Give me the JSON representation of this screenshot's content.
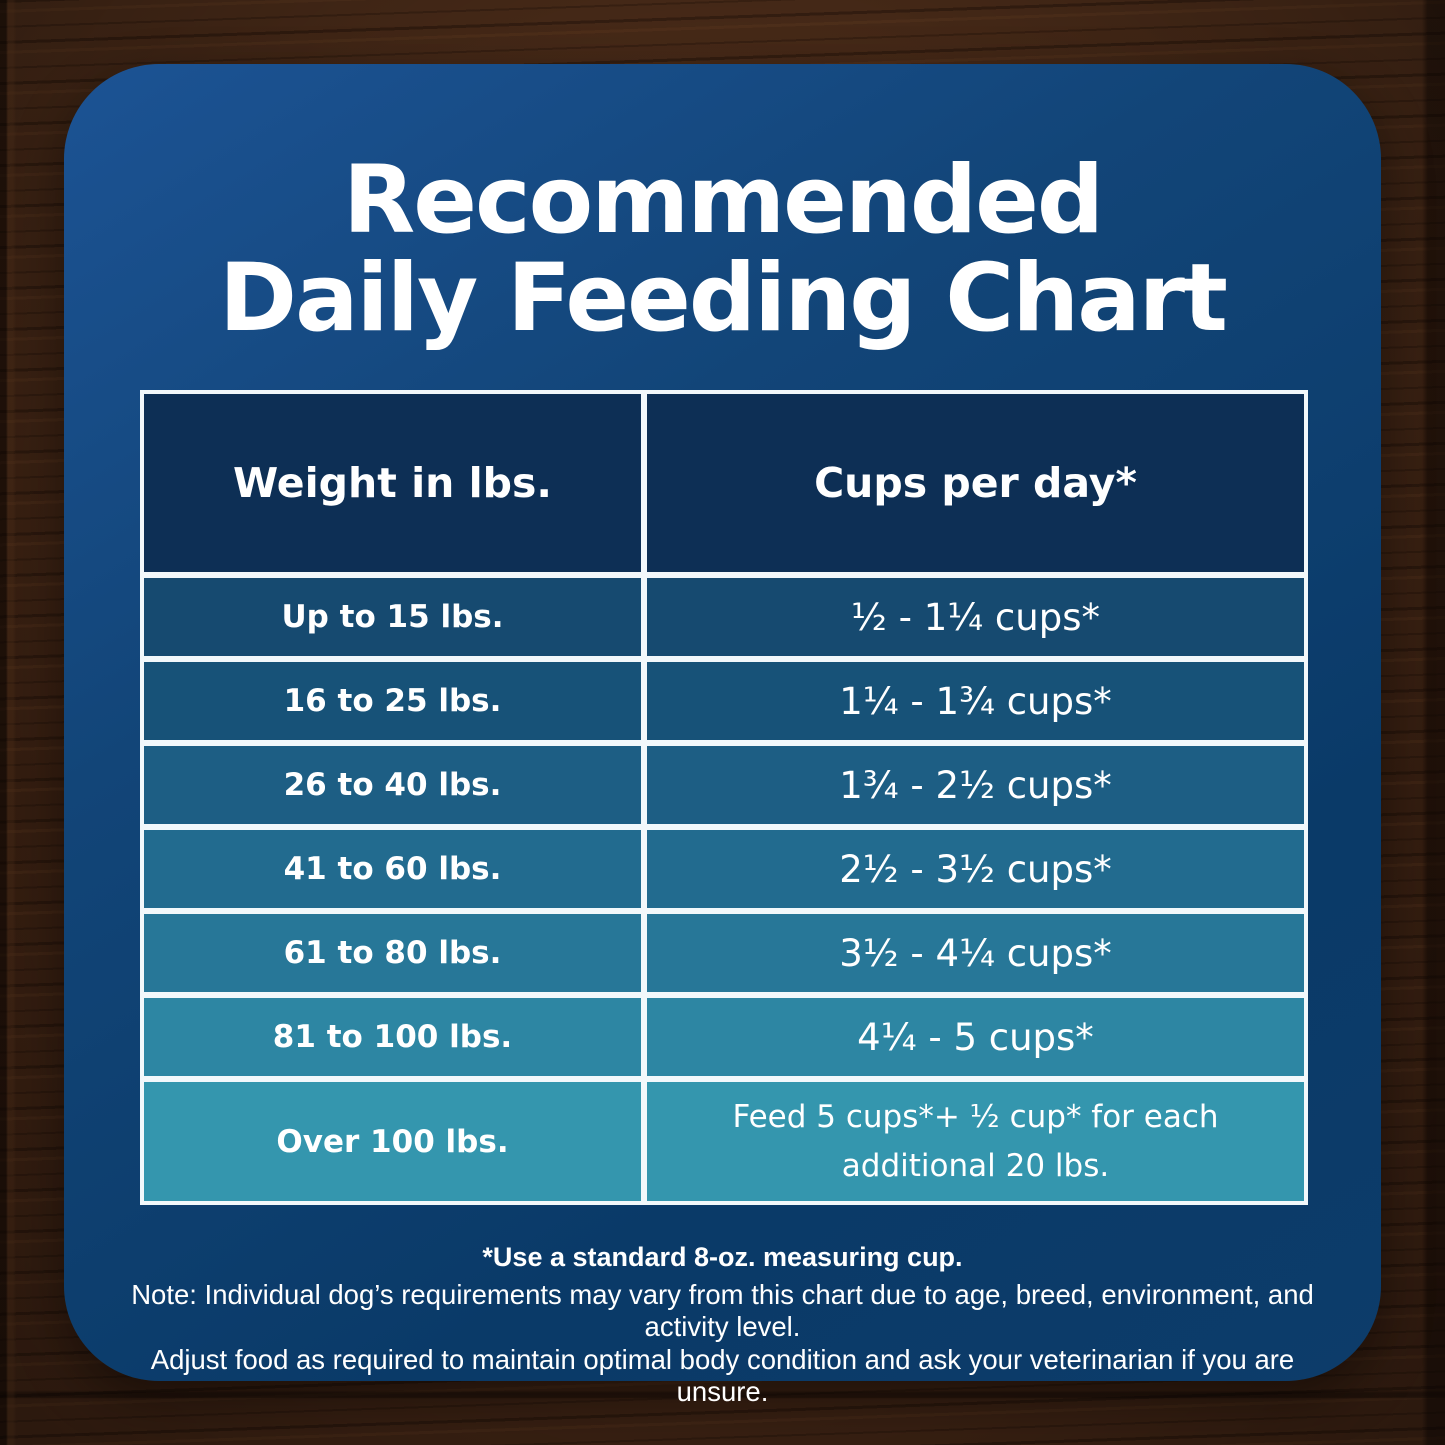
{
  "title": {
    "line1": "Recommended",
    "line2": "Daily Feeding Chart"
  },
  "table": {
    "headers": [
      "Weight in lbs.",
      "Cups per day*"
    ],
    "header_bg": "#0d2f55",
    "divider_color": "#f2f8fb",
    "row_colors": [
      "#164a70",
      "#175278",
      "#1d5e84",
      "#226b8f",
      "#277798",
      "#2d86a3",
      "#3496ae"
    ],
    "rows": [
      {
        "weight": "Up to 15 lbs.",
        "cups": "½ - 1¼ cups*"
      },
      {
        "weight": "16 to 25 lbs.",
        "cups": "1¼ - 1¾  cups*"
      },
      {
        "weight": "26 to 40 lbs.",
        "cups": "1¾ - 2½ cups*"
      },
      {
        "weight": "41 to 60 lbs.",
        "cups": "2½ - 3½ cups*"
      },
      {
        "weight": "61 to 80 lbs.",
        "cups": "3½ - 4¼ cups*"
      },
      {
        "weight": "81 to 100 lbs.",
        "cups": "4¼ - 5 cups*"
      },
      {
        "weight": "Over 100 lbs.",
        "cups": "Feed 5 cups*+ ½ cup* for each additional 20 lbs."
      }
    ]
  },
  "footnotes": {
    "line1": "*Use a standard 8-oz. measuring cup.",
    "line2": "Note: Individual dog’s requirements may vary from this chart due to age, breed, environment, and activity level.",
    "line3": "Adjust food as required to maintain optimal body condition and ask your veterinarian if you are unsure."
  },
  "colors": {
    "card_blue_top": "#1c5394",
    "card_blue_bottom": "#0a3a68",
    "wood_brown": "#4b2a17",
    "text": "#ffffff"
  },
  "chart_data": {
    "type": "table",
    "title": "Recommended Daily Feeding Chart",
    "columns": [
      "Weight in lbs.",
      "Cups per day*"
    ],
    "rows": [
      [
        "Up to 15 lbs.",
        "½ - 1¼ cups*"
      ],
      [
        "16 to 25 lbs.",
        "1¼ - 1¾ cups*"
      ],
      [
        "26 to 40 lbs.",
        "1¾ - 2½ cups*"
      ],
      [
        "41 to 60 lbs.",
        "2½ - 3½ cups*"
      ],
      [
        "61 to 80 lbs.",
        "3½ - 4¼ cups*"
      ],
      [
        "81 to 100 lbs.",
        "4¼ - 5 cups*"
      ],
      [
        "Over 100 lbs.",
        "Feed 5 cups*+ ½ cup* for each additional 20 lbs."
      ]
    ],
    "notes": [
      "*Use a standard 8-oz. measuring cup.",
      "Note: Individual dog’s requirements may vary from this chart due to age, breed, environment, and activity level.",
      "Adjust food as required to maintain optimal body condition and ask your veterinarian if you are unsure."
    ]
  }
}
